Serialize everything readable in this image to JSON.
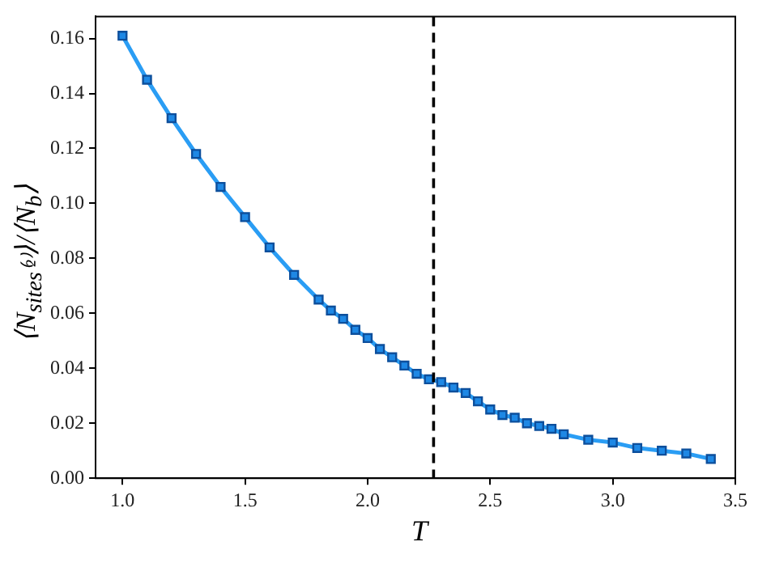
{
  "chart_data": {
    "type": "line",
    "xlabel": "T",
    "ylabel": "⟨N$_{sites⁽²⁾}$⟩/⟨N$_{b}$⟩",
    "x": [
      1.0,
      1.1,
      1.2,
      1.3,
      1.4,
      1.5,
      1.6,
      1.7,
      1.8,
      1.85,
      1.9,
      1.95,
      2.0,
      2.05,
      2.1,
      2.15,
      2.2,
      2.25,
      2.3,
      2.35,
      2.4,
      2.45,
      2.5,
      2.55,
      2.6,
      2.65,
      2.7,
      2.75,
      2.8,
      2.9,
      3.0,
      3.1,
      3.2,
      3.3,
      3.4
    ],
    "series": [
      {
        "color": "#2a9df4",
        "values": [
          0.161,
          0.145,
          0.131,
          0.118,
          0.106,
          0.095,
          0.084,
          0.074,
          0.065,
          0.061,
          0.058,
          0.054,
          0.051,
          0.047,
          0.044,
          0.041,
          0.038,
          0.036,
          0.035,
          0.033,
          0.031,
          0.028,
          0.025,
          0.023,
          0.022,
          0.02,
          0.019,
          0.018,
          0.016,
          0.014,
          0.013,
          0.011,
          0.01,
          0.009,
          0.007
        ]
      }
    ],
    "xlim": [
      0.89,
      3.5
    ],
    "ylim": [
      0,
      0.168
    ],
    "xticks": [
      {
        "value": 1,
        "label": "1.0"
      },
      {
        "value": 1.5,
        "label": "1.5"
      },
      {
        "value": 2,
        "label": "2.0"
      },
      {
        "value": 2.5,
        "label": "2.5"
      },
      {
        "value": 3,
        "label": "3.0"
      },
      {
        "value": 3.5,
        "label": "3.5"
      }
    ],
    "yticks": [
      {
        "value": 0,
        "label": "0.00"
      },
      {
        "value": 0.02,
        "label": "0.02"
      },
      {
        "value": 0.04,
        "label": "0.04"
      },
      {
        "value": 0.06,
        "label": "0.06"
      },
      {
        "value": 0.08,
        "label": "0.08"
      },
      {
        "value": 0.1,
        "label": "0.10"
      },
      {
        "value": 0.12,
        "label": "0.12"
      },
      {
        "value": 0.14,
        "label": "0.14"
      },
      {
        "value": 0.16,
        "label": "0.16"
      }
    ],
    "ref_lines": [
      {
        "axis": "x",
        "value": 2.269,
        "color": "#000000",
        "line_style": "dashed"
      }
    ],
    "marker": "square",
    "line_style": "solid",
    "grid": false,
    "legend": false
  }
}
